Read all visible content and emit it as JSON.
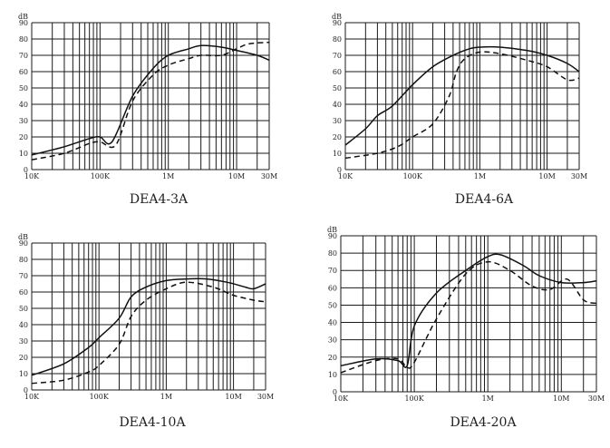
{
  "chart_data": [
    {
      "type": "line",
      "title": "DEA4-3A",
      "x_scale": "log",
      "xlim": [
        10000,
        30000000
      ],
      "ylim": [
        0,
        90
      ],
      "y_unit": "dB",
      "y_ticks": [
        "0",
        "10",
        "20",
        "30",
        "40",
        "50",
        "60",
        "70",
        "80",
        "90"
      ],
      "x_ticks": [
        {
          "value": 10000,
          "label": "10K"
        },
        {
          "value": 100000,
          "label": "100K"
        },
        {
          "value": 1000000,
          "label": "1M"
        },
        {
          "value": 10000000,
          "label": "10M"
        },
        {
          "value": 30000000,
          "label": "30M"
        }
      ],
      "grid": true,
      "series": [
        {
          "style": "solid",
          "points": [
            [
              10000,
              9
            ],
            [
              30000,
              14
            ],
            [
              70000,
              19
            ],
            [
              100000,
              20
            ],
            [
              150000,
              17
            ],
            [
              300000,
              45
            ],
            [
              600000,
              62
            ],
            [
              1000000,
              70
            ],
            [
              2000000,
              74
            ],
            [
              3000000,
              76
            ],
            [
              6000000,
              75
            ],
            [
              10000000,
              73
            ],
            [
              20000000,
              70
            ],
            [
              30000000,
              67
            ]
          ]
        },
        {
          "style": "dashed",
          "points": [
            [
              10000,
              6
            ],
            [
              30000,
              10
            ],
            [
              70000,
              16
            ],
            [
              100000,
              17
            ],
            [
              170000,
              15
            ],
            [
              300000,
              42
            ],
            [
              600000,
              58
            ],
            [
              1000000,
              64
            ],
            [
              2000000,
              68
            ],
            [
              3000000,
              70
            ],
            [
              6000000,
              70
            ],
            [
              10000000,
              74
            ],
            [
              15000000,
              77
            ],
            [
              30000000,
              78
            ]
          ]
        }
      ]
    },
    {
      "type": "line",
      "title": "DEA4-6A",
      "x_scale": "log",
      "xlim": [
        10000,
        30000000
      ],
      "ylim": [
        0,
        90
      ],
      "y_unit": "dB",
      "y_ticks": [
        "0",
        "10",
        "20",
        "30",
        "40",
        "50",
        "60",
        "70",
        "80",
        "90"
      ],
      "x_ticks": [
        {
          "value": 10000,
          "label": "10K"
        },
        {
          "value": 100000,
          "label": "100K"
        },
        {
          "value": 1000000,
          "label": "1M"
        },
        {
          "value": 10000000,
          "label": "10M"
        },
        {
          "value": 30000000,
          "label": "30M"
        }
      ],
      "grid": true,
      "series": [
        {
          "style": "solid",
          "points": [
            [
              10000,
              15
            ],
            [
              20000,
              25
            ],
            [
              30000,
              33
            ],
            [
              50000,
              39
            ],
            [
              100000,
              52
            ],
            [
              200000,
              63
            ],
            [
              400000,
              70
            ],
            [
              700000,
              74
            ],
            [
              1000000,
              75
            ],
            [
              2000000,
              75
            ],
            [
              5000000,
              73
            ],
            [
              10000000,
              70
            ],
            [
              20000000,
              65
            ],
            [
              30000000,
              60
            ]
          ]
        },
        {
          "style": "dashed",
          "points": [
            [
              10000,
              7
            ],
            [
              30000,
              10
            ],
            [
              60000,
              14
            ],
            [
              100000,
              20
            ],
            [
              200000,
              28
            ],
            [
              350000,
              45
            ],
            [
              450000,
              60
            ],
            [
              600000,
              68
            ],
            [
              1000000,
              72
            ],
            [
              2000000,
              71
            ],
            [
              5000000,
              67
            ],
            [
              10000000,
              63
            ],
            [
              20000000,
              55
            ],
            [
              30000000,
              56
            ]
          ]
        }
      ]
    },
    {
      "type": "line",
      "title": "DEA4-10A",
      "x_scale": "log",
      "xlim": [
        10000,
        30000000
      ],
      "ylim": [
        0,
        90
      ],
      "y_unit": "dB",
      "y_ticks": [
        "0",
        "10",
        "20",
        "30",
        "40",
        "50",
        "60",
        "70",
        "80",
        "90"
      ],
      "x_ticks": [
        {
          "value": 10000,
          "label": "10K"
        },
        {
          "value": 100000,
          "label": "100K"
        },
        {
          "value": 1000000,
          "label": "1M"
        },
        {
          "value": 10000000,
          "label": "10M"
        },
        {
          "value": 30000000,
          "label": "30M"
        }
      ],
      "grid": true,
      "series": [
        {
          "style": "solid",
          "points": [
            [
              10000,
              9
            ],
            [
              30000,
              16
            ],
            [
              70000,
              26
            ],
            [
              100000,
              32
            ],
            [
              200000,
              44
            ],
            [
              300000,
              57
            ],
            [
              500000,
              63
            ],
            [
              1000000,
              67
            ],
            [
              2000000,
              68
            ],
            [
              4000000,
              68
            ],
            [
              8000000,
              66
            ],
            [
              15000000,
              63
            ],
            [
              20000000,
              62
            ],
            [
              30000000,
              65
            ]
          ]
        },
        {
          "style": "dashed",
          "points": [
            [
              10000,
              4
            ],
            [
              30000,
              6
            ],
            [
              70000,
              11
            ],
            [
              100000,
              15
            ],
            [
              200000,
              28
            ],
            [
              300000,
              45
            ],
            [
              500000,
              55
            ],
            [
              1000000,
              62
            ],
            [
              2000000,
              66
            ],
            [
              5000000,
              63
            ],
            [
              10000000,
              58
            ],
            [
              20000000,
              55
            ],
            [
              30000000,
              54
            ]
          ]
        }
      ]
    },
    {
      "type": "line",
      "title": "DEA4-20A",
      "x_scale": "log",
      "xlim": [
        10000,
        30000000
      ],
      "ylim": [
        0,
        90
      ],
      "y_unit": "dB",
      "y_ticks": [
        "0",
        "10",
        "20",
        "30",
        "40",
        "50",
        "60",
        "70",
        "80",
        "90"
      ],
      "x_ticks": [
        {
          "value": 10000,
          "label": "10K"
        },
        {
          "value": 100000,
          "label": "100K"
        },
        {
          "value": 1000000,
          "label": "1M"
        },
        {
          "value": 10000000,
          "label": "10M"
        },
        {
          "value": 30000000,
          "label": "30M"
        }
      ],
      "grid": true,
      "series": [
        {
          "style": "solid",
          "points": [
            [
              10000,
              15
            ],
            [
              30000,
              19
            ],
            [
              60000,
              18
            ],
            [
              80000,
              15
            ],
            [
              100000,
              38
            ],
            [
              200000,
              57
            ],
            [
              500000,
              70
            ],
            [
              1000000,
              78
            ],
            [
              1500000,
              79
            ],
            [
              3000000,
              73
            ],
            [
              5000000,
              67
            ],
            [
              10000000,
              63
            ],
            [
              20000000,
              63
            ],
            [
              30000000,
              64
            ]
          ]
        },
        {
          "style": "dashed",
          "points": [
            [
              10000,
              11
            ],
            [
              30000,
              18
            ],
            [
              60000,
              19
            ],
            [
              80000,
              14
            ],
            [
              100000,
              17
            ],
            [
              200000,
              42
            ],
            [
              500000,
              68
            ],
            [
              1000000,
              75
            ],
            [
              2000000,
              70
            ],
            [
              4000000,
              61
            ],
            [
              7000000,
              59
            ],
            [
              12000000,
              65
            ],
            [
              20000000,
              53
            ],
            [
              30000000,
              51
            ]
          ]
        }
      ]
    }
  ]
}
